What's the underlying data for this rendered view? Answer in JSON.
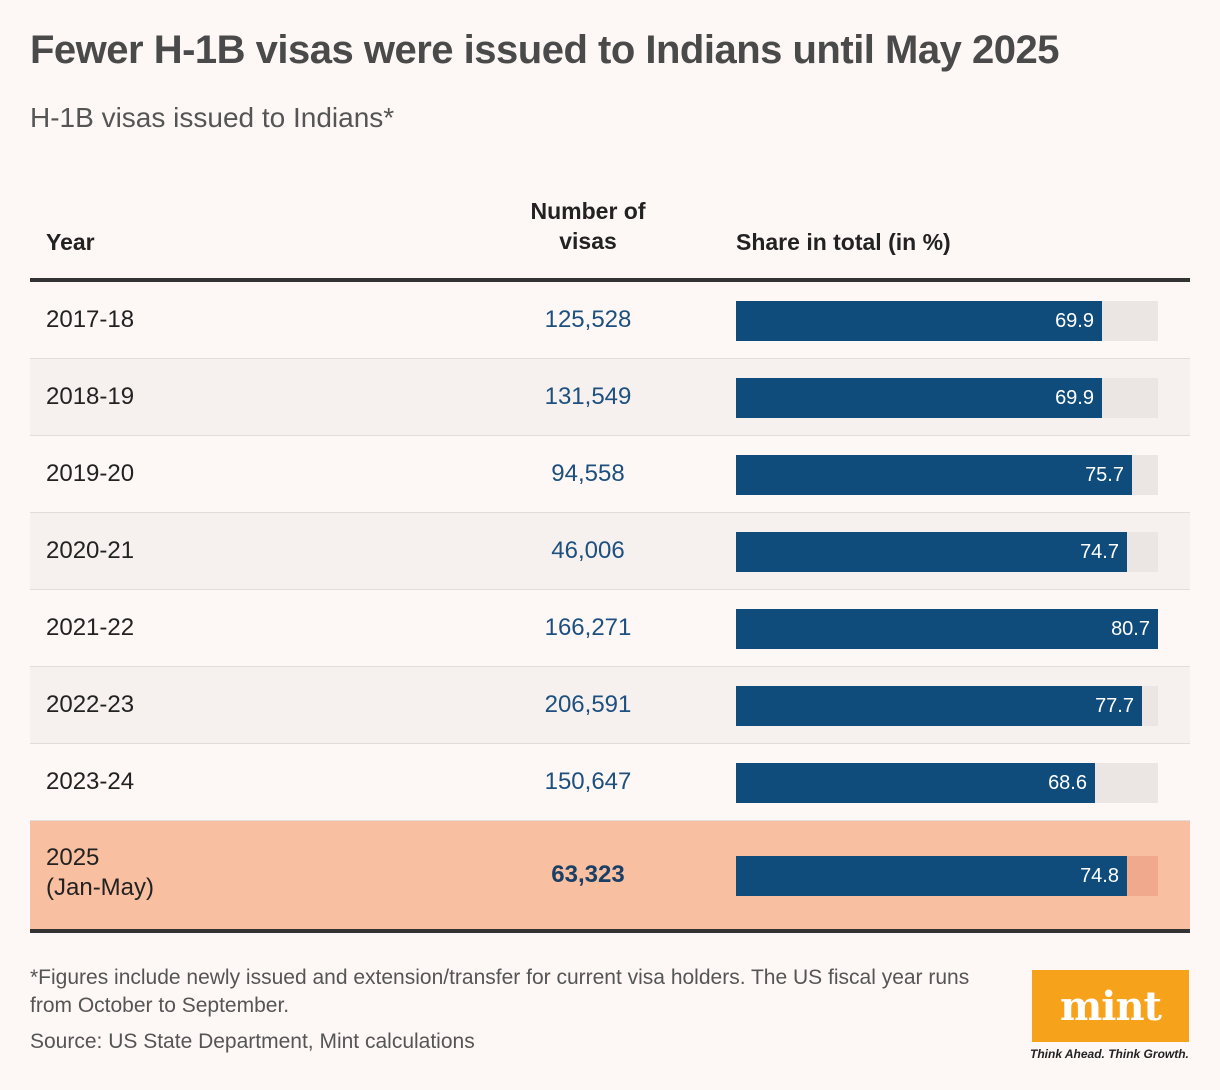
{
  "title": "Fewer H-1B visas were issued to Indians until May 2025",
  "subtitle": "H-1B visas issued to Indians*",
  "columns": {
    "year": "Year",
    "number": "Number of visas",
    "share": "Share in total (in %)"
  },
  "chart_data": {
    "type": "table",
    "columns": [
      "Year",
      "Number of visas",
      "Share in total (in %)"
    ],
    "share_axis_max": 80.7,
    "rows": [
      {
        "year": "2017-18",
        "visas": "125,528",
        "share": 69.9
      },
      {
        "year": "2018-19",
        "visas": "131,549",
        "share": 69.9
      },
      {
        "year": "2019-20",
        "visas": "94,558",
        "share": 75.7
      },
      {
        "year": "2020-21",
        "visas": "46,006",
        "share": 74.7
      },
      {
        "year": "2021-22",
        "visas": "166,271",
        "share": 80.7
      },
      {
        "year": "2022-23",
        "visas": "206,591",
        "share": 77.7
      },
      {
        "year": "2023-24",
        "visas": "150,647",
        "share": 68.6
      },
      {
        "year": "2025\n(Jan-May)",
        "visas": "63,323",
        "share": 74.8,
        "highlight": true
      }
    ]
  },
  "footnote": "*Figures include newly issued and extension/transfer for current visa holders. The US fiscal year runs from October to September.",
  "source": "Source: US State Department, Mint calculations",
  "brand": {
    "logo_text": "mint",
    "tagline": "Think Ahead. Think Growth.",
    "logo_color": "#f7a21b"
  },
  "colors": {
    "bar": "#0f4c7c",
    "highlight_row": "#f9bfa1",
    "number_text": "#1d4f7f"
  }
}
